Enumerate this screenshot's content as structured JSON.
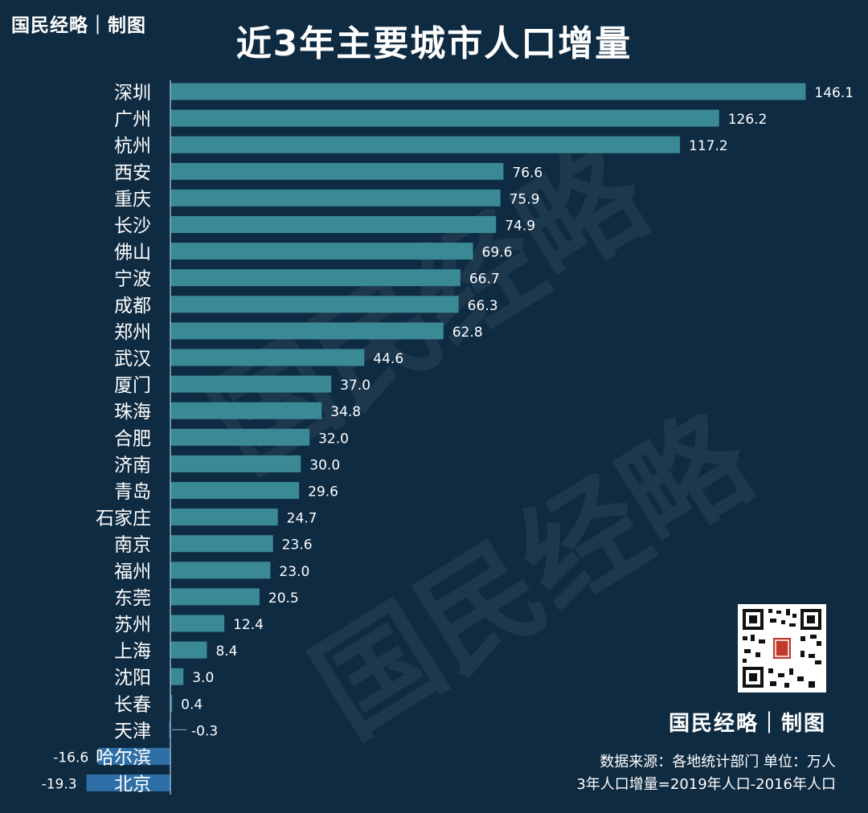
{
  "header": {
    "brand": "国民经略｜制图",
    "title": "近3年主要城市人口增量"
  },
  "footer": {
    "brand": "国民经略｜制图",
    "source_line": "数据来源：各地统计部门 单位：万人",
    "formula_line": "3年人口增量=2019年人口-2016年人口"
  },
  "watermark": [
    "国民经略",
    "国民经略"
  ],
  "colors": {
    "background": "#0f2b42",
    "bar_positive": "#3a8a96",
    "bar_negative": "#2f6fa8",
    "text": "#ffffff"
  },
  "chart_data": {
    "type": "bar",
    "orientation": "horizontal",
    "title": "近3年主要城市人口增量",
    "xlim": [
      -19.3,
      146.1
    ],
    "grid": false,
    "categories": [
      "深圳",
      "广州",
      "杭州",
      "西安",
      "重庆",
      "长沙",
      "佛山",
      "宁波",
      "成都",
      "郑州",
      "武汉",
      "厦门",
      "珠海",
      "合肥",
      "济南",
      "青岛",
      "石家庄",
      "南京",
      "福州",
      "东莞",
      "苏州",
      "上海",
      "沈阳",
      "长春",
      "天津",
      "哈尔滨",
      "北京"
    ],
    "values": [
      146.1,
      126.2,
      117.2,
      76.6,
      75.9,
      74.9,
      69.6,
      66.7,
      66.3,
      62.8,
      44.6,
      37.0,
      34.8,
      32.0,
      30.0,
      29.6,
      24.7,
      23.6,
      23.0,
      20.5,
      12.4,
      8.4,
      3.0,
      0.4,
      -0.3,
      -16.6,
      -19.3
    ],
    "data_labels": [
      "146.1",
      "126.2",
      "117.2",
      "76.6",
      "75.9",
      "74.9",
      "69.6",
      "66.7",
      "66.3",
      "62.8",
      "44.6",
      "37.0",
      "34.8",
      "32.0",
      "30.0",
      "29.6",
      "24.7",
      "23.6",
      "23.0",
      "20.5",
      "12.4",
      "8.4",
      "3.0",
      "0.4",
      "-0.3",
      "-16.6",
      "-19.3"
    ]
  }
}
